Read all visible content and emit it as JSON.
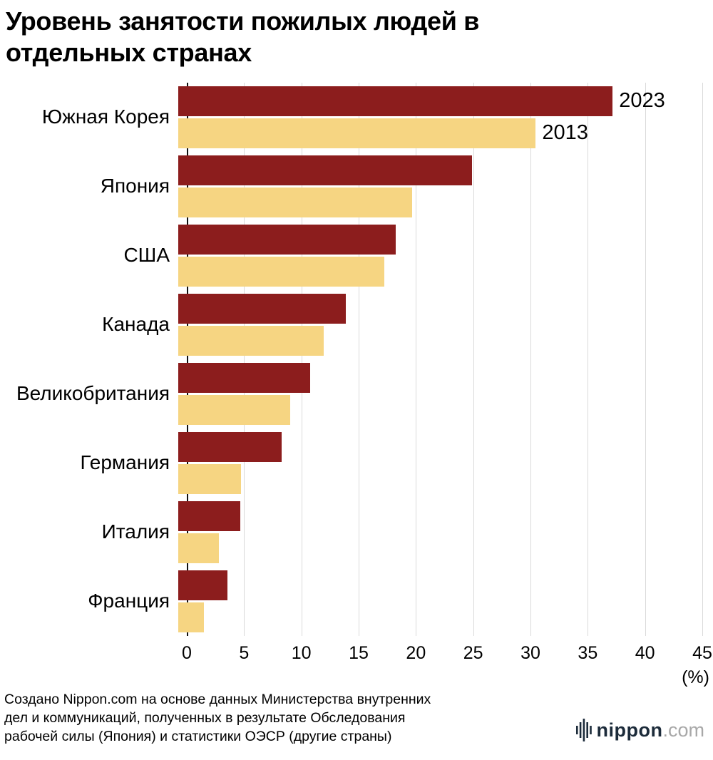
{
  "title": "Уровень занятости пожилых людей в отдельных странах",
  "chart_data": {
    "type": "bar",
    "orientation": "horizontal",
    "title": "Уровень занятости пожилых людей в отдельных странах",
    "categories": [
      "Южная Корея",
      "Япония",
      "США",
      "Канада",
      "Великобритания",
      "Германия",
      "Италия",
      "Франция"
    ],
    "series": [
      {
        "name": "2023",
        "color": "#8c1d1d",
        "values": [
          37.3,
          25.2,
          18.7,
          14.4,
          11.3,
          8.9,
          5.3,
          4.2
        ]
      },
      {
        "name": "2013",
        "color": "#f6d582",
        "values": [
          30.7,
          20.1,
          17.7,
          12.5,
          9.6,
          5.4,
          3.5,
          2.2
        ]
      }
    ],
    "xlim": [
      0,
      45
    ],
    "xticks": [
      0,
      5,
      10,
      15,
      20,
      25,
      30,
      35,
      40,
      45
    ],
    "x_unit": "(%)",
    "grid": true,
    "legend_position": "inline-next-to-first-bars"
  },
  "footer": {
    "source": "Создано Nippon.com на основе данных Министерства внутренних\nдел и коммуникаций, полученных в результате Обследования\nрабочей силы (Япония) и статистики ОЭСР (другие страны)"
  },
  "logo": {
    "brand": "nippon",
    "suffix": ".com"
  },
  "colors": {
    "series_2023": "#8c1d1d",
    "series_2013": "#f6d582",
    "gridline": "#dadada",
    "axis": "#111111",
    "logo_brand": "#1c2b3a",
    "logo_suffix": "#a8a8a8"
  }
}
